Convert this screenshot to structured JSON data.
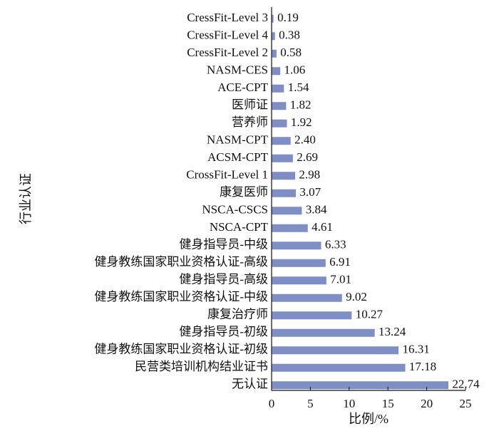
{
  "chart_data": {
    "type": "bar",
    "orientation": "horizontal",
    "categories": [
      "CressFit-Level 3",
      "CressFit-Level 4",
      "CressFit-Level 2",
      "NASM-CES",
      "ACE-CPT",
      "医师证",
      "营养师",
      "NASM-CPT",
      "ACSM-CPT",
      "CrossFit-Level 1",
      "康复医师",
      "NSCA-CSCS",
      "NSCA-CPT",
      "健身指导员-中级",
      "健身教练国家职业资格认证-高级",
      "健身指导员-高级",
      "健身教练国家职业资格认证-中级",
      "康复治疗师",
      "健身指导员-初级",
      "健身教练国家职业资格认证-初级",
      "民营类培训机构结业证书",
      "无认证"
    ],
    "values": [
      0.19,
      0.38,
      0.58,
      1.06,
      1.54,
      1.82,
      1.92,
      2.4,
      2.69,
      2.98,
      3.07,
      3.84,
      4.61,
      6.33,
      6.91,
      7.01,
      9.02,
      10.27,
      13.24,
      16.31,
      17.18,
      22.74
    ],
    "value_labels": [
      "0.19",
      "0.38",
      "0.58",
      "1.06",
      "1.54",
      "1.82",
      "1.92",
      "2.40",
      "2.69",
      "2.98",
      "3.07",
      "3.84",
      "4.61",
      "6.33",
      "6.91",
      "7.01",
      "9.02",
      "10.27",
      "13.24",
      "16.31",
      "17.18",
      "22.74"
    ],
    "xlabel": "比例/%",
    "ylabel": "行业认证",
    "xlim": [
      0,
      25
    ],
    "xticks": [
      0,
      5,
      10,
      15,
      20,
      25
    ],
    "grid": false,
    "bar_color": "#7f8ec4"
  }
}
